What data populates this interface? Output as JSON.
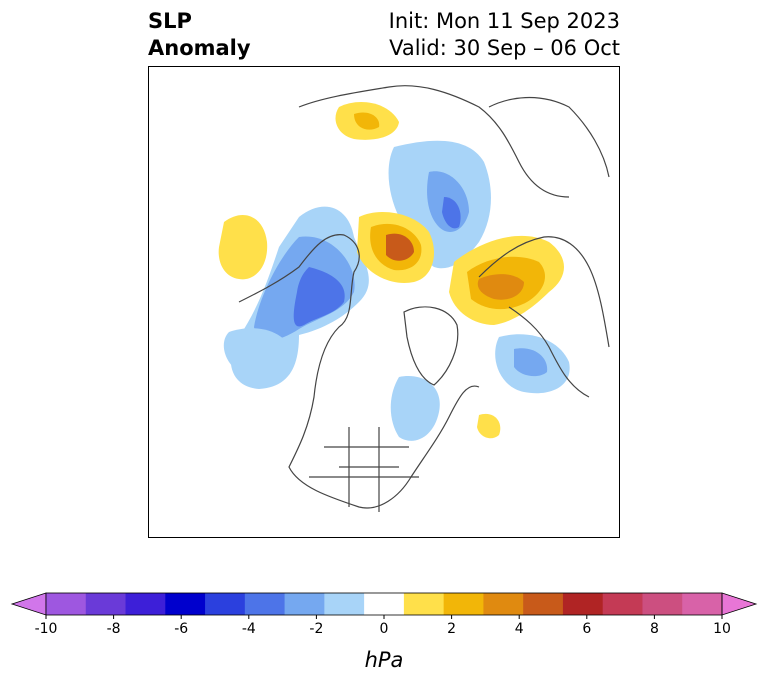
{
  "title": {
    "line1": "SLP",
    "line2": "Anomaly",
    "init": "Init: Mon 11 Sep 2023",
    "valid": "Valid: 30 Sep – 06 Oct"
  },
  "colorbar": {
    "unit": "hPa",
    "ticks": [
      "-10",
      "-8",
      "-6",
      "-4",
      "-2",
      "0",
      "2",
      "4",
      "6",
      "8",
      "10"
    ],
    "colors": [
      "#d176ea",
      "#9e57e0",
      "#6a3ad8",
      "#3d1fd8",
      "#0000cd",
      "#2b40de",
      "#4d74e8",
      "#75a8f0",
      "#a8d4f8",
      "#ffffff",
      "#ffe04a",
      "#f2b608",
      "#e08a10",
      "#c85a1a",
      "#b02424",
      "#c43a55",
      "#cc4f80",
      "#d862a8",
      "#e876d6"
    ]
  },
  "colors": {
    "land_outline": "#444444",
    "frame": "#000000"
  }
}
